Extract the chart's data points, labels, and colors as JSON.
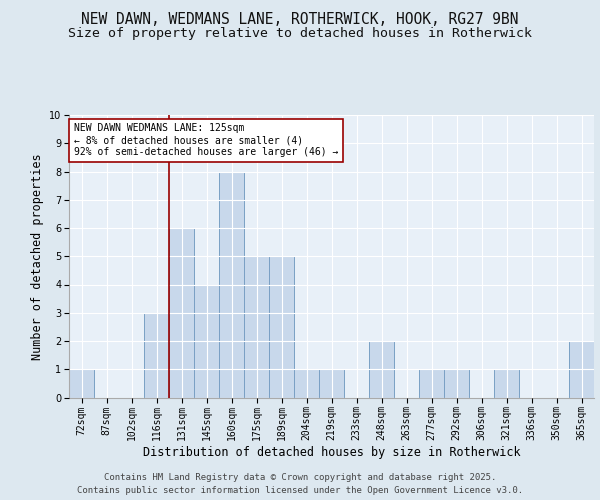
{
  "title_line1": "NEW DAWN, WEDMANS LANE, ROTHERWICK, HOOK, RG27 9BN",
  "title_line2": "Size of property relative to detached houses in Rotherwick",
  "xlabel": "Distribution of detached houses by size in Rotherwick",
  "ylabel": "Number of detached properties",
  "footer_line1": "Contains HM Land Registry data © Crown copyright and database right 2025.",
  "footer_line2": "Contains public sector information licensed under the Open Government Licence v3.0.",
  "categories": [
    "72sqm",
    "87sqm",
    "102sqm",
    "116sqm",
    "131sqm",
    "145sqm",
    "160sqm",
    "175sqm",
    "189sqm",
    "204sqm",
    "219sqm",
    "233sqm",
    "248sqm",
    "263sqm",
    "277sqm",
    "292sqm",
    "306sqm",
    "321sqm",
    "336sqm",
    "350sqm",
    "365sqm"
  ],
  "values": [
    1,
    0,
    0,
    3,
    6,
    4,
    8,
    5,
    5,
    1,
    1,
    0,
    2,
    0,
    1,
    1,
    0,
    1,
    0,
    0,
    2
  ],
  "bar_color": "#c8d8eb",
  "bar_edge_color": "#7aa0c4",
  "vline_x_index": 3.5,
  "vline_color": "#990000",
  "annotation_text": "NEW DAWN WEDMANS LANE: 125sqm\n← 8% of detached houses are smaller (4)\n92% of semi-detached houses are larger (46) →",
  "annotation_box_color": "#ffffff",
  "annotation_box_edge": "#990000",
  "ylim": [
    0,
    10
  ],
  "yticks": [
    0,
    1,
    2,
    3,
    4,
    5,
    6,
    7,
    8,
    9,
    10
  ],
  "bg_color": "#dde8f0",
  "plot_bg_color": "#e8f0f8",
  "grid_color": "#ffffff",
  "title_fontsize": 10.5,
  "subtitle_fontsize": 9.5,
  "axis_label_fontsize": 8.5,
  "tick_fontsize": 7,
  "annotation_fontsize": 7,
  "footer_fontsize": 6.5
}
